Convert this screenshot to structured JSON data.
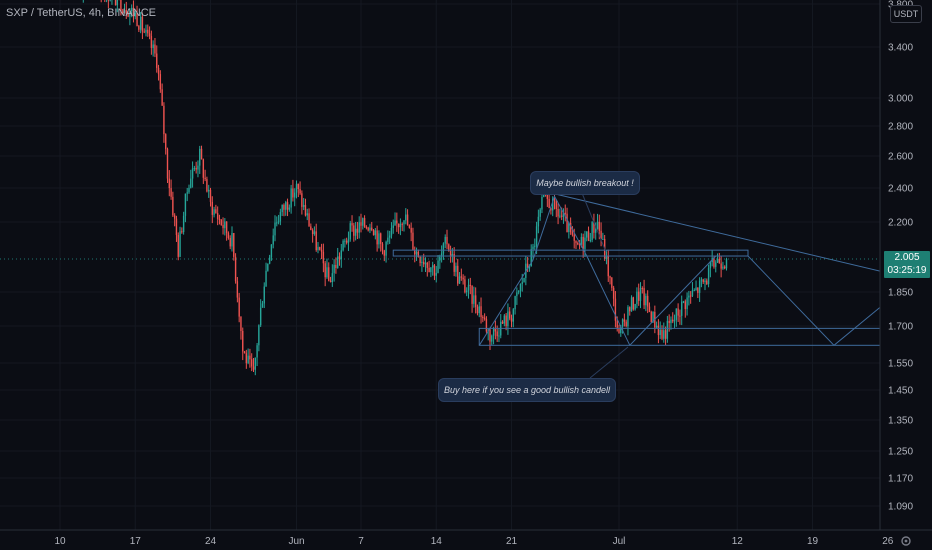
{
  "header": {
    "symbol": "SXP / TetherUS, 4h, BINANCE",
    "currency": "USDT"
  },
  "current_price": {
    "value": "2.005",
    "countdown": "03:25:19"
  },
  "annotations": {
    "top": "Maybe bullish breakout !",
    "bottom": "Buy here if you see a good bullish candell"
  },
  "colors": {
    "background": "#0b0d14",
    "up": "#26a69a",
    "down": "#ef5350",
    "drawing": "#3f6b9c",
    "callout": "#1b2b45"
  },
  "icons": {
    "settings": "gear-icon"
  },
  "chart_data": {
    "type": "candlestick",
    "title": "SXP / TetherUS, 4h, BINANCE",
    "scale": "log",
    "ylim": [
      1.0,
      3.8
    ],
    "y_ticks": [
      "3.800",
      "3.400",
      "3.000",
      "2.800",
      "2.600",
      "2.400",
      "2.200",
      "2.005",
      "1.850",
      "1.700",
      "1.550",
      "1.450",
      "1.350",
      "1.250",
      "1.170",
      "1.090"
    ],
    "x_ticks": [
      "10",
      "17",
      "24",
      "Jun",
      "7",
      "14",
      "21",
      "Jul",
      "12",
      "19",
      "26"
    ],
    "x_dates": [
      "2021-05-10",
      "2021-05-17",
      "2021-05-24",
      "2021-06-01",
      "2021-06-07",
      "2021-06-14",
      "2021-06-21",
      "2021-07-01",
      "2021-07-12",
      "2021-07-19",
      "2021-07-26"
    ],
    "price_path": [
      [
        "2021-05-10",
        4.0
      ],
      [
        "2021-05-14",
        3.95
      ],
      [
        "2021-05-17",
        3.7
      ],
      [
        "2021-05-19",
        3.3
      ],
      [
        "2021-05-20",
        2.5
      ],
      [
        "2021-05-21",
        2.05
      ],
      [
        "2021-05-22",
        2.45
      ],
      [
        "2021-05-23",
        2.6
      ],
      [
        "2021-05-24",
        2.3
      ],
      [
        "2021-05-26",
        2.1
      ],
      [
        "2021-05-27",
        1.6
      ],
      [
        "2021-05-28",
        1.5
      ],
      [
        "2021-05-29",
        1.9
      ],
      [
        "2021-05-30",
        2.2
      ],
      [
        "2021-06-01",
        2.4
      ],
      [
        "2021-06-03",
        2.05
      ],
      [
        "2021-06-04",
        1.9
      ],
      [
        "2021-06-06",
        2.15
      ],
      [
        "2021-06-08",
        2.2
      ],
      [
        "2021-06-09",
        2.05
      ],
      [
        "2021-06-11",
        2.25
      ],
      [
        "2021-06-12",
        2.05
      ],
      [
        "2021-06-14",
        1.95
      ],
      [
        "2021-06-15",
        2.1
      ],
      [
        "2021-06-16",
        1.92
      ],
      [
        "2021-06-18",
        1.78
      ],
      [
        "2021-06-19",
        1.66
      ],
      [
        "2021-06-21",
        1.75
      ],
      [
        "2021-06-23",
        2.05
      ],
      [
        "2021-06-24",
        2.35
      ],
      [
        "2021-06-26",
        2.2
      ],
      [
        "2021-06-27",
        2.05
      ],
      [
        "2021-06-29",
        2.2
      ],
      [
        "2021-06-30",
        1.95
      ],
      [
        "2021-07-01",
        1.65
      ],
      [
        "2021-07-02",
        1.78
      ],
      [
        "2021-07-03",
        1.85
      ],
      [
        "2021-07-04",
        1.75
      ],
      [
        "2021-07-05",
        1.66
      ],
      [
        "2021-07-06",
        1.72
      ],
      [
        "2021-07-07",
        1.8
      ],
      [
        "2021-07-08",
        1.85
      ],
      [
        "2021-07-09",
        1.9
      ],
      [
        "2021-07-10",
        2.0
      ],
      [
        "2021-07-11",
        2.005
      ]
    ],
    "drawings": {
      "resistance_line": [
        [
          "2021-06-24",
          2.38
        ],
        [
          "2021-07-30",
          1.89
        ]
      ],
      "box_upper": {
        "from": "2021-06-10",
        "to": "2021-07-13",
        "high": 2.05,
        "low": 2.02
      },
      "box_lower": {
        "from": "2021-06-18",
        "to": "2021-07-27",
        "high": 1.69,
        "low": 1.62
      },
      "zigzag": [
        [
          "2021-06-18",
          1.62
        ],
        [
          "2021-06-23",
          2.0
        ],
        [
          "2021-06-25",
          2.35
        ],
        [
          "2021-06-28",
          2.02
        ],
        [
          "2021-07-02",
          1.62
        ],
        [
          "2021-07-10",
          2.02
        ],
        [
          "2021-07-13",
          2.02
        ],
        [
          "2021-07-21",
          1.62
        ],
        [
          "2021-07-28",
          1.89
        ]
      ]
    }
  }
}
